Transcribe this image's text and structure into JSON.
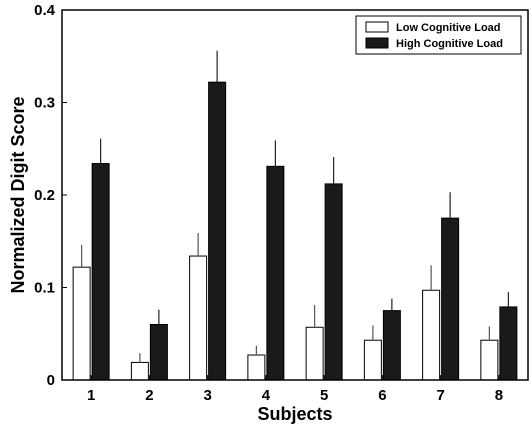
{
  "chart_data": {
    "type": "bar",
    "xlabel": "Subjects",
    "ylabel": "Normalized Digit Score",
    "categories": [
      "1",
      "2",
      "3",
      "4",
      "5",
      "6",
      "7",
      "8"
    ],
    "ylim": [
      0,
      0.4
    ],
    "yticks": [
      "0",
      "0.1",
      "0.2",
      "0.3",
      "0.4"
    ],
    "grid": false,
    "legend_position": "top-right",
    "series": [
      {
        "name": "Low Cognitive Load",
        "color": "#ffffff",
        "values": [
          0.122,
          0.019,
          0.134,
          0.027,
          0.057,
          0.043,
          0.097,
          0.043
        ],
        "errors": [
          0.024,
          0.01,
          0.025,
          0.01,
          0.024,
          0.016,
          0.027,
          0.015
        ]
      },
      {
        "name": "High Cognitive Load",
        "color": "#1a1a1a",
        "values": [
          0.234,
          0.06,
          0.322,
          0.231,
          0.212,
          0.075,
          0.175,
          0.079
        ],
        "errors": [
          0.027,
          0.016,
          0.034,
          0.028,
          0.029,
          0.013,
          0.028,
          0.016
        ]
      }
    ]
  }
}
